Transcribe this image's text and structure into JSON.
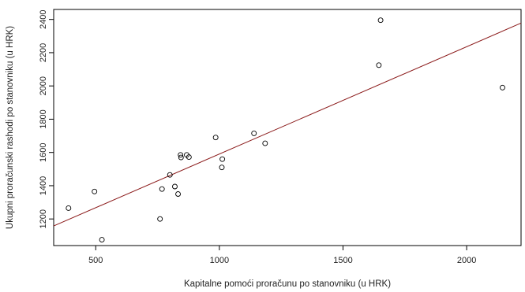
{
  "chart_data": {
    "type": "scatter",
    "title": "",
    "xlabel": "Kapitalne pomoći proračunu po stanovniku (u HRK)",
    "ylabel": "Ukupni proračunski rashodi po stanovniku (u HRK)",
    "xlim": [
      330,
      2220
    ],
    "ylim": [
      1040,
      2460
    ],
    "xticks": [
      500,
      1000,
      1500,
      2000
    ],
    "yticks": [
      1200,
      1400,
      1600,
      1800,
      2000,
      2200,
      2400
    ],
    "grid": false,
    "legend": "none",
    "colors": {
      "points": "#000000",
      "fit_line": "#8b1a1a",
      "axes": "#000000"
    },
    "points": [
      {
        "x": 390,
        "y": 1265
      },
      {
        "x": 495,
        "y": 1365
      },
      {
        "x": 525,
        "y": 1075
      },
      {
        "x": 760,
        "y": 1200
      },
      {
        "x": 768,
        "y": 1380
      },
      {
        "x": 800,
        "y": 1465
      },
      {
        "x": 820,
        "y": 1395
      },
      {
        "x": 833,
        "y": 1350
      },
      {
        "x": 843,
        "y": 1585
      },
      {
        "x": 845,
        "y": 1570
      },
      {
        "x": 868,
        "y": 1585
      },
      {
        "x": 877,
        "y": 1572
      },
      {
        "x": 985,
        "y": 1690
      },
      {
        "x": 1010,
        "y": 1510
      },
      {
        "x": 1012,
        "y": 1560
      },
      {
        "x": 1140,
        "y": 1715
      },
      {
        "x": 1185,
        "y": 1655
      },
      {
        "x": 1645,
        "y": 2125
      },
      {
        "x": 1652,
        "y": 2395
      },
      {
        "x": 2145,
        "y": 1990
      }
    ],
    "fit_line": {
      "slope": 0.6455,
      "intercept": 944.9
    }
  }
}
